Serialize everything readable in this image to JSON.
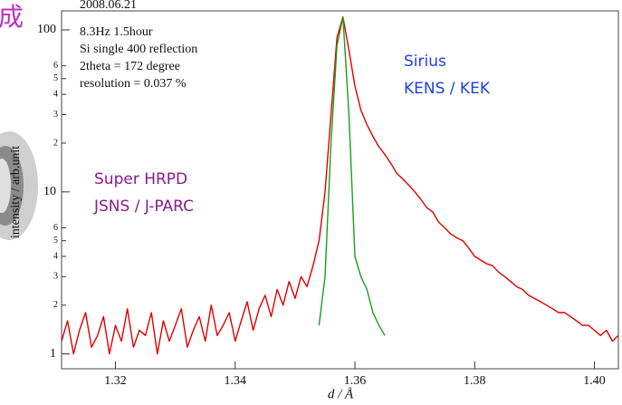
{
  "slide_fragment": "成",
  "chart_data": {
    "type": "line",
    "log_y": true,
    "ylabel": "intensity / arb.unit",
    "xlabel": "d / Å",
    "annotations": [
      "2008.06.21",
      "8.3Hz 1.5hour",
      "Si single 400 reflection",
      "2theta = 172 degree",
      "resolution = 0.037 %"
    ],
    "xlim": [
      1.311,
      1.404
    ],
    "xticks": [
      1.32,
      1.34,
      1.36,
      1.38,
      {
        "value": 1.4,
        "label": "1.40"
      }
    ],
    "ylim": [
      0.81,
      131
    ],
    "yticks": [
      1,
      2,
      3,
      4,
      5,
      6,
      10,
      {
        "value": 20,
        "label": "2"
      },
      {
        "value": 30,
        "label": "3"
      },
      {
        "value": 40,
        "label": "4"
      },
      {
        "value": 50,
        "label": "5"
      },
      {
        "value": 60,
        "label": "6"
      },
      100
    ],
    "x": [
      1.311,
      1.312,
      1.313,
      1.314,
      1.315,
      1.316,
      1.317,
      1.318,
      1.319,
      1.32,
      1.321,
      1.322,
      1.323,
      1.324,
      1.325,
      1.326,
      1.327,
      1.328,
      1.329,
      1.33,
      1.331,
      1.332,
      1.333,
      1.334,
      1.335,
      1.336,
      1.337,
      1.338,
      1.339,
      1.34,
      1.341,
      1.342,
      1.343,
      1.344,
      1.345,
      1.346,
      1.347,
      1.348,
      1.349,
      1.35,
      1.351,
      1.352,
      1.353,
      1.354,
      1.355,
      1.356,
      1.357,
      1.358,
      1.359,
      1.36,
      1.361,
      1.362,
      1.363,
      1.364,
      1.365,
      1.366,
      1.367,
      1.368,
      1.369,
      1.37,
      1.371,
      1.372,
      1.373,
      1.374,
      1.375,
      1.376,
      1.377,
      1.378,
      1.379,
      1.38,
      1.381,
      1.382,
      1.383,
      1.384,
      1.385,
      1.386,
      1.387,
      1.388,
      1.389,
      1.39,
      1.391,
      1.392,
      1.393,
      1.394,
      1.395,
      1.396,
      1.397,
      1.398,
      1.399,
      1.4,
      1.401,
      1.402,
      1.403,
      1.404
    ],
    "series": [
      {
        "name": "Sirius",
        "lab": "KENS / KEK",
        "color": "#e00000",
        "label_color": "#1b3ff0",
        "values": [
          1.2,
          1.6,
          1,
          1.4,
          1.8,
          1.1,
          1.3,
          1.7,
          1,
          1.5,
          1.2,
          1.9,
          1.1,
          1.4,
          1.3,
          1.8,
          1,
          1.6,
          1.2,
          1.5,
          1.9,
          1.1,
          1.4,
          1.7,
          1.2,
          2,
          1.3,
          1.5,
          1.8,
          1.2,
          1.6,
          2.1,
          1.4,
          1.9,
          2.3,
          1.7,
          2.5,
          2,
          2.8,
          2.2,
          3,
          2.6,
          3.5,
          5,
          10,
          30,
          90,
          120,
          75,
          45,
          32,
          26,
          22,
          19,
          17,
          15,
          13,
          12,
          11,
          10,
          9,
          8,
          7.5,
          6.5,
          6,
          5.5,
          5.2,
          5,
          4.5,
          4,
          3.8,
          3.6,
          3.5,
          3.2,
          3,
          2.8,
          2.6,
          2.5,
          2.3,
          2.2,
          2.1,
          2,
          1.9,
          1.8,
          1.8,
          1.7,
          1.6,
          1.5,
          1.5,
          1.4,
          1.3,
          1.4,
          1.2,
          1.3
        ]
      },
      {
        "name": "Super HRPD",
        "lab": "JSNS / J-PARC",
        "color": "#1a9e1a",
        "label_color": "#8b1a8b",
        "values": [
          null,
          null,
          null,
          null,
          null,
          null,
          null,
          null,
          null,
          null,
          null,
          null,
          null,
          null,
          null,
          null,
          null,
          null,
          null,
          null,
          null,
          null,
          null,
          null,
          null,
          null,
          null,
          null,
          null,
          null,
          null,
          null,
          null,
          null,
          null,
          null,
          null,
          null,
          null,
          null,
          null,
          null,
          null,
          1.5,
          3,
          20,
          80,
          120,
          30,
          4,
          3,
          2.5,
          1.8,
          1.5,
          1.3,
          null,
          null,
          null,
          null,
          null,
          null,
          null,
          null,
          null,
          null,
          null,
          null,
          null,
          null,
          null,
          null,
          null,
          null,
          null,
          null,
          null,
          null,
          null,
          null,
          null,
          null,
          null,
          null,
          null,
          null,
          null,
          null,
          null,
          null,
          null,
          null,
          null,
          null,
          null
        ]
      }
    ]
  }
}
